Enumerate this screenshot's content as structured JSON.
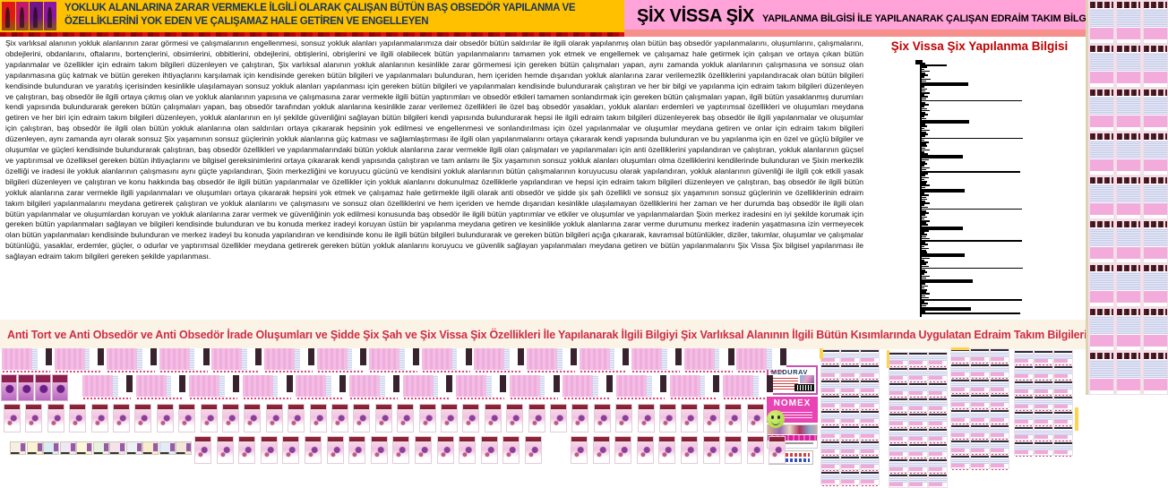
{
  "header_left": {
    "text": "YOKLUK ALANLARINA ZARAR VERMEKLE İLGİLİ OLARAK ÇALIŞAN BÜTÜN BAŞ OBSEDÖR YAPILANMA VE ÖZELLİKLERİNİ YOK EDEN VE ÇALIŞAMAZ HALE GETİREN VE ENGELLEYEN"
  },
  "header_right": {
    "brand": "ŞİX VİSSA ŞİX",
    "subtitle": "YAPILANMA BİLGİSİ İLE YAPILANARAK ÇALIŞAN EDRAİM TAKIM BİLGİLERİ"
  },
  "body": {
    "paragraph": "Şix varlıksal alanının yokluk alanlarının zarar görmesi ve çalışmalarının engellenmesi, sonsuz yokluk alanları yapılanmalarımıza dair obsedör bütün saldırılar ile ilgili olarak yapılanmış olan bütün baş obsedör yapılanmalarını, oluşumlarını, çalışmalarını, obdejlerini, obdanlarını, oftalarını, bortençlerini, obsimlerini, obbitlerini, obdejlerini, obtişlerini, obrişlerini ve ilgili olabilecek bütün yapılanmalarını tamamen yok etmek ve engellemek ve çalışamaz hale getirmek için çalışan ve ortaya çıkan bütün yapılanmalar ve özellikler için edraim takım bilgileri düzenleyen ve çalıştıran, Şix varlıksal alanının yokluk alanlarının kesinlikle zarar görmemesi için gereken bütün çalışmaları yapan, aynı zamanda yokluk alanlarının çalışmasına ve sonsuz olan yapılanmasına güç katmak ve bütün gereken ihtiyaçlarını karşılamak için kendisinde gereken bütün bilgileri ve yapılanmaları bulunduran, hem içeriden hemde dışarıdan yokluk alanlarına zarar verilemezlik özelliklerini yapılandıracak olan bütün bilgileri kendisinde bulunduran ve yaratılış içerisinden kesinlikle ulaşılamayan sonsuz yokluk alanları yapılanması için gereken bütün bilgileri ve yapılanmaları kendisinde bulundurarak çalıştıran ve her bir bilgi ve yapılanma için edraim takım bilgileri düzenleyen ve çalıştıran, baş obsedör ile ilgili ortaya çıkmış olan ve yokluk alanlarının yapısına ve çalışmasına zarar vermekle ilgili bütün yaptırımları ve obsedör etkileri tamamen sonlandırmak için gereken bütün çalışmaları yapan, ilgili bütün yasaklanmış durumları kendi yapısında bulundurarak gereken bütün çalışmaları yapan, baş obsedör tarafından yokluk alanlarına kesinlikle zarar verilemez özellikleri ile özel baş obsedör yasakları, yokluk alanları erdemleri ve yaptırımsal özellikleri ve oluşumları meydana getiren ve her biri için edraim takım bilgileri düzenleyen, yokluk alanlarının en iyi şekilde güvenliğini sağlayan bütün bilgileri kendi yapısında bulundurarak hepsi ile ilgili edraim takım bilgileri düzenleyerek baş obsedör ile ilgili yapılanmalar ve oluşumlar için çalıştıran, baş obsedör ile ilgili olan bütün yokluk alanlarına olan saldırıları ortaya çıkararak hepsinin yok edilmesi ve engellenmesi ve sonlandırılması için özel yapılanmalar ve oluşumlar meydana getiren ve onlar için edraim takım bilgileri düzenleyen, aynı zamanda ayrı olarak sonsuz Şix yaşamının sonsuz güçlerinin yokluk alanlarına güç katması ve sağlamlaştırması ile ilgili olan yapılanmalarını ortaya çıkararak kendi yapısında bulunduran ve bu yapılanma için en özel ve güçlü bilgiler ve oluşumlar ve güçleri kendisinde bulundurarak çalıştıran, baş obsedör özellikleri ve yapılanmalarındaki bütün yokluk alanlarına zarar vermekle ilgili olan çalışmaları ve yapılanmaları için anti özelliklerini yapılandıran ve çalıştıran, yokluk alanlarının güçsel ve yaptırımsal ve özelliksel gereken bütün ihtiyaçlarını ve bilgisel gereksinimlerini ortaya çıkararak kendi yapısında çalıştıran ve tam anlamı ile Şix yaşamının sonsuz yokluk alanları oluşumları olma özelliklerini kendilerinde bulunduran ve Şixin merkezlik özelliği ve iradesi ile yokluk alanlarının çalışmasını aynı güçte yapılandıran, Şixin merkezliğini ve koruyucu gücünü ve kendisini yokluk alanlarının bütün çalışmalarının koruyucusu olarak yapılandıran, yokluk alanlarının güvenliği ile ilgili çok etkili yasak bilgileri düzenleyen ve çalıştıran ve konu hakkında baş obsedör ile ilgili bütün yapılanmalar ve özellikler için yokluk alanlarını dokunulmaz özelliklerle yapılandıran ve hepsi için edraim takım bilgileri düzenleyen ve çalıştıran, baş obsedör ile ilgili bütün yokluk alanlarına zarar vermekle ilgili yapılanmaları ve oluşumları ortaya çıkararak hepsini yok etmek ve çalışamaz hale getirmekle ilgili olarak anti obsedör ve şidde şix şah özellikli ve sonsuz şix yaşamının sonsuz güçlerinin ve özelliklerinin edraim takım bilgileri yapılanmalarını meydana getirerek çalıştıran ve yokluk alanlarını ve çalışmasını ve sonsuz olan özelliklerini ve hem içeriden ve hemde dışarıdan kesinlikle ulaşılamayan özelliklerini her zaman ve her durumda baş obsedör ile ilgili olan bütün yapılanmalar ve oluşumlardan koruyan ve yokluk alanlarına zarar vermek ve güvenliğinin yok edilmesi konusunda baş obsedör ile ilgili bütün yaptırımlar ve etkiler ve oluşumlar ve yapılanmalardan Şixin merkez iradesini en iyi şekilde korumak için gereken bütün yapılanmaları sağlayan ve bilgileri kendisinde bulunduran ve bu konuda merkez iradeyi koruyan üstün bir yapılanma meydana getiren ve kesinlikle yokluk alanlarına zarar verme durumunu merkez iradenin yaşatmasına izin vermeyecek olan bütün yapılanmaları kendisinde bulunduran ve merkez iradeyi bu konuda yapılandıran ve kendisinde konu ile ilgili bütün bilgileri bulundurarak ve gereken bütün bilgileri açığa çıkararak, kavramsal bütünlükler, diziler, takımlar, oluşumlar ve çalışmalar bütünlüğü, yasaklar, erdemler, güçler, o odurlar ve yaptırımsal özellikler meydana getirerek gereken bütün yokluk alanlarını koruyucu ve güvenlik sağlayan yapılanmaları meydana getiren ve bütün yapılanmalarını Şix Vissa Şix bilgisel yapılanması ile sağlayan edraim takım bilgileri gereken şekilde yapılanması."
  },
  "chart_data": {
    "type": "bar",
    "orientation": "horizontal",
    "title": "Şix Vissa Şix Yapılanma Bilgisi",
    "legend": "none",
    "axis": "single vertical baseline at left, no tick labels",
    "value_unit": "relative bar length (px)",
    "values": [
      4,
      28,
      6,
      3,
      9,
      4,
      7,
      3,
      10,
      5,
      52,
      8,
      3,
      6,
      4,
      9,
      3,
      7,
      5,
      112,
      4,
      8,
      3,
      6,
      9,
      4,
      7,
      3,
      5,
      53,
      8,
      4,
      6,
      3,
      9,
      5,
      7,
      4,
      113,
      3,
      8,
      5,
      6,
      4,
      9,
      3,
      7,
      46,
      5,
      8,
      4,
      6,
      3,
      9,
      5,
      110,
      7,
      4,
      8,
      3,
      6,
      5,
      9,
      4,
      48,
      7,
      3,
      8,
      5,
      6,
      4,
      9,
      3,
      7,
      112,
      5,
      8,
      4,
      6,
      3,
      9,
      5,
      7,
      46,
      4,
      8,
      3,
      6,
      5,
      9,
      112,
      4,
      7,
      3,
      8,
      5,
      6,
      48,
      4,
      9,
      3,
      7,
      5,
      8,
      113,
      4,
      6,
      3,
      9,
      5,
      57,
      8,
      4,
      7,
      3,
      6,
      5,
      9,
      4,
      8,
      112,
      3,
      7,
      5,
      55,
      9,
      4,
      110
    ]
  },
  "banner": {
    "text": "Anti Tort ve Anti Obsedör ve Anti Obsedör İrade Oluşumları ve Şidde Şix Şah ve Şix Vissa Şix Özellikleri İle Yapılanarak İlgili Bilgiyi Şix Varlıksal Alanının İlgili Bütün Kısımlarında Uygulatan Edraim Takım Bilgileri Yapılanması"
  },
  "product_boxes": {
    "medurav": "MEDURAV",
    "nomex": "NOMEX"
  },
  "colors": {
    "header_yellow": "#ffc000",
    "header_pink": "#ffa3d8",
    "header_navy": "#17365d",
    "divider_red": "#c00000",
    "divider_salmon": "#f5908c",
    "chart_title_red": "#c00000",
    "banner_red": "#cf2c45",
    "thumb_pink": "#f3abdc",
    "thumb_lavender": "#ccd2ee"
  },
  "gallery": {
    "header_icon_panels": [
      "#e01818",
      "#c0186a",
      "#70148c",
      "#8c16a0"
    ],
    "right_strip": {
      "cols": 3,
      "rows": 9
    },
    "row_a_cards": 15,
    "row_b_covers": 4,
    "row_b_cards": 13,
    "row_c_products": 35,
    "row_d_icons": 11,
    "row_d_products_group1": 16,
    "row_d_products_group2": 10,
    "grid_block_origins_x": [
      917,
      993,
      1062,
      1133
    ],
    "grid_block_rows": [
      9,
      9,
      8,
      7
    ],
    "grid_cols": 3,
    "icon_palette": [
      "#f6efe2",
      "#fbf3cf",
      "#d9ecf4",
      "#efe7f4",
      "#fdf6d8",
      "#e8f2e0",
      "#f4e3ea",
      "#eef0f8",
      "#f9eccc",
      "#e3ebf6",
      "#f2e8da"
    ]
  }
}
